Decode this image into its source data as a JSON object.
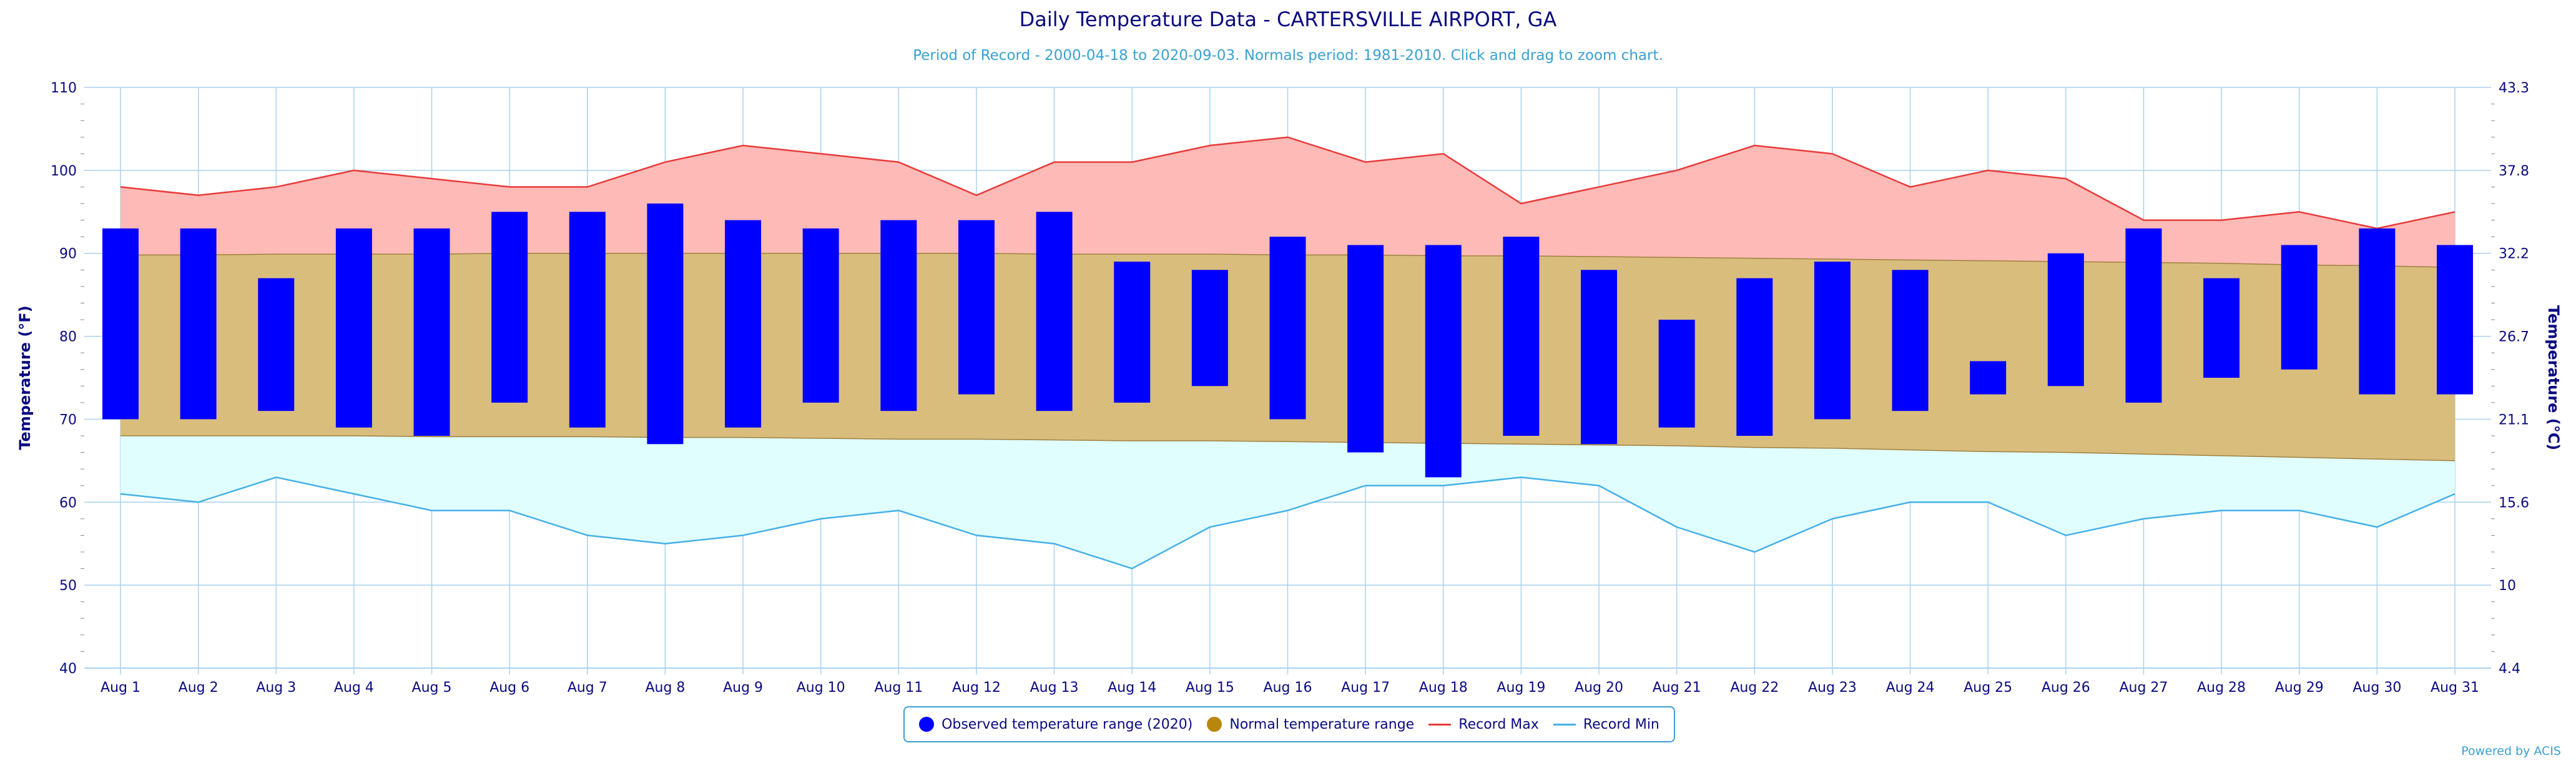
{
  "title": "Daily Temperature Data - CARTERSVILLE AIRPORT, GA",
  "subtitle": "Period of Record - 2000-04-18 to 2020-09-03. Normals period: 1981-2010. Click and drag to zoom chart.",
  "credit": "Powered by ACIS",
  "colors": {
    "observed": "#0000ff",
    "normal_fill": "#d9bd7c",
    "normal_swatch": "#b8860b",
    "record_max_fill": "#fdbab6",
    "record_max_line": "#e83a3a",
    "record_min_fill": "#e0fefe",
    "record_min_line": "#45b0e8",
    "grid": "#a8d2ef",
    "axis_text": "#0a0a80"
  },
  "legend": {
    "observed": "Observed temperature range (2020)",
    "normal": "Normal temperature range",
    "record_max": "Record Max",
    "record_min": "Record Min"
  },
  "chart_data": {
    "type": "bar",
    "categories": [
      "Aug 1",
      "Aug 2",
      "Aug 3",
      "Aug 4",
      "Aug 5",
      "Aug 6",
      "Aug 7",
      "Aug 8",
      "Aug 9",
      "Aug 10",
      "Aug 11",
      "Aug 12",
      "Aug 13",
      "Aug 14",
      "Aug 15",
      "Aug 16",
      "Aug 17",
      "Aug 18",
      "Aug 19",
      "Aug 20",
      "Aug 21",
      "Aug 22",
      "Aug 23",
      "Aug 24",
      "Aug 25",
      "Aug 26",
      "Aug 27",
      "Aug 28",
      "Aug 29",
      "Aug 30",
      "Aug 31"
    ],
    "ylabel": "Temperature (°F)",
    "ylabel_right": "Temperature (°C)",
    "ylim": [
      40,
      110
    ],
    "yticks": [
      40,
      50,
      60,
      70,
      80,
      90,
      100,
      110
    ],
    "yticks_right": [
      "4.4",
      "10",
      "15.6",
      "21.1",
      "26.7",
      "32.2",
      "37.8",
      "43.3"
    ],
    "grid": true,
    "legend_position": "bottom",
    "series": [
      {
        "name": "Observed temperature range (2020)",
        "kind": "range-bar",
        "low": [
          70,
          70,
          71,
          69,
          68,
          72,
          69,
          67,
          69,
          72,
          71,
          73,
          71,
          72,
          74,
          70,
          66,
          63,
          68,
          67,
          69,
          68,
          70,
          71,
          73,
          74,
          72,
          75,
          76,
          73,
          73
        ],
        "high": [
          93,
          93,
          87,
          93,
          93,
          95,
          95,
          96,
          94,
          93,
          94,
          94,
          95,
          89,
          88,
          92,
          91,
          91,
          92,
          88,
          82,
          87,
          89,
          88,
          77,
          90,
          93,
          87,
          91,
          93,
          91
        ]
      },
      {
        "name": "Normal temperature range",
        "kind": "range-area",
        "low": [
          68,
          68,
          68,
          68,
          67.9,
          67.9,
          67.9,
          67.8,
          67.8,
          67.7,
          67.6,
          67.6,
          67.5,
          67.4,
          67.4,
          67.3,
          67.2,
          67.1,
          67,
          66.9,
          66.8,
          66.6,
          66.5,
          66.3,
          66.1,
          66,
          65.8,
          65.6,
          65.4,
          65.2,
          65
        ],
        "high": [
          89.8,
          89.8,
          89.9,
          89.9,
          89.9,
          90,
          90,
          90,
          90,
          90,
          90,
          90,
          89.9,
          89.9,
          89.9,
          89.8,
          89.8,
          89.7,
          89.7,
          89.6,
          89.5,
          89.4,
          89.3,
          89.2,
          89.1,
          89,
          88.9,
          88.8,
          88.6,
          88.5,
          88.3
        ]
      },
      {
        "name": "Record Max",
        "kind": "line",
        "values": [
          98,
          97,
          98,
          100,
          99,
          98,
          98,
          101,
          103,
          102,
          101,
          97,
          101,
          101,
          103,
          104,
          101,
          102,
          96,
          98,
          100,
          103,
          102,
          98,
          100,
          99,
          94,
          94,
          95,
          93,
          95
        ]
      },
      {
        "name": "Record Min",
        "kind": "line",
        "values": [
          61,
          60,
          63,
          61,
          59,
          59,
          56,
          55,
          56,
          58,
          59,
          56,
          55,
          52,
          57,
          59,
          62,
          62,
          63,
          62,
          57,
          54,
          58,
          60,
          60,
          56,
          58,
          59,
          59,
          57,
          61
        ]
      }
    ]
  }
}
